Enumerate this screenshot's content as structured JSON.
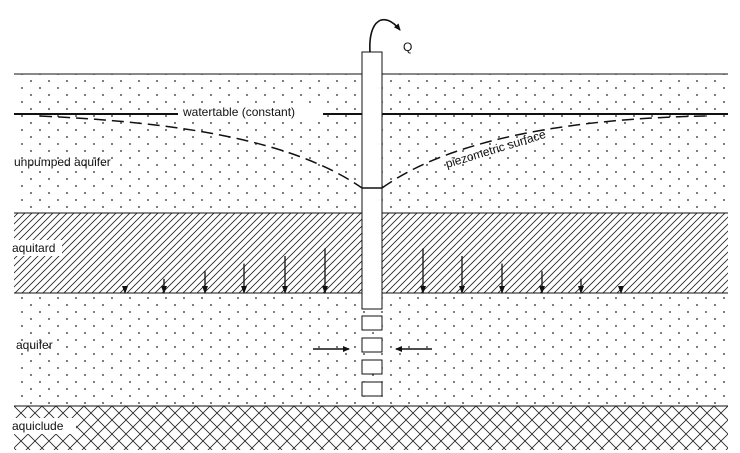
{
  "labels": {
    "discharge": "Q",
    "watertable": "watertable (constant)",
    "piezometric": "piezometric surface",
    "unpumped_aquifer": "unpumped aquifer",
    "aquitard": "aquitard",
    "aquifer": "aquifer",
    "aquiclude": "aquiclude"
  },
  "leakage_arrows": {
    "left": [
      1,
      2,
      3,
      4,
      5,
      6
    ],
    "right": [
      6,
      5,
      4,
      3,
      2,
      1
    ]
  },
  "colors": {
    "ink": "#111111",
    "background": "#ffffff"
  }
}
